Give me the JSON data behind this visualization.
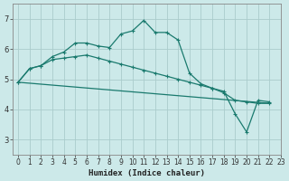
{
  "xlabel": "Humidex (Indice chaleur)",
  "bg_color": "#cce9e9",
  "grid_color": "#aacccc",
  "line_color": "#1a7a6e",
  "xlim": [
    -0.5,
    23
  ],
  "ylim": [
    2.5,
    7.5
  ],
  "yticks": [
    3,
    4,
    5,
    6,
    7
  ],
  "xticks": [
    0,
    1,
    2,
    3,
    4,
    5,
    6,
    7,
    8,
    9,
    10,
    11,
    12,
    13,
    14,
    15,
    16,
    17,
    18,
    19,
    20,
    21,
    22,
    23
  ],
  "line1_x": [
    0,
    1,
    2,
    3,
    4,
    5,
    6,
    7,
    8,
    9,
    10,
    11,
    12,
    13,
    14,
    15,
    16,
    17,
    18,
    19,
    20,
    21,
    22
  ],
  "line1_y": [
    4.9,
    5.35,
    5.45,
    5.75,
    5.9,
    6.2,
    6.2,
    6.1,
    6.05,
    6.5,
    6.6,
    6.95,
    6.55,
    6.55,
    6.3,
    5.2,
    4.85,
    4.7,
    4.55,
    4.3,
    4.25,
    4.2,
    4.2
  ],
  "line2_x": [
    0,
    1,
    2,
    3,
    4,
    5,
    6,
    7,
    8,
    9,
    10,
    11,
    12,
    13,
    14,
    15,
    16,
    17,
    18,
    19,
    20,
    21,
    22
  ],
  "line2_y": [
    4.9,
    5.35,
    5.45,
    5.65,
    5.7,
    5.75,
    5.8,
    5.7,
    5.6,
    5.5,
    5.4,
    5.3,
    5.2,
    5.1,
    5.0,
    4.9,
    4.8,
    4.7,
    4.6,
    3.85,
    3.25,
    4.3,
    4.25
  ],
  "line3_x": [
    0,
    22
  ],
  "line3_y": [
    4.9,
    4.2
  ]
}
